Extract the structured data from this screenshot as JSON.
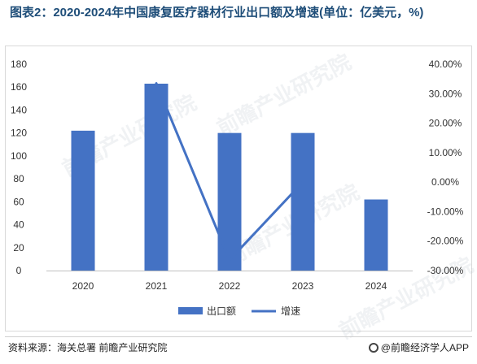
{
  "title": "图表2：2020-2024年中国康复医疗器材行业出口额及增速(单位：亿美元，%)",
  "source": "资料来源：海关总署 前瞻产业研究院",
  "brand": "@前瞻经济学人APP",
  "watermark": "前瞻产业研究院",
  "colors": {
    "bar": "#4472c4",
    "line": "#4472c4",
    "title": "#1f4e79"
  },
  "chart_data": {
    "type": "bar",
    "categories": [
      "2020",
      "2021",
      "2022",
      "2023",
      "2024"
    ],
    "series": [
      {
        "name": "出口额",
        "type": "bar",
        "axis": "left",
        "values": [
          122,
          163,
          120,
          120,
          62
        ]
      },
      {
        "name": "增速",
        "type": "line",
        "axis": "right",
        "values": [
          null,
          33.5,
          -26.4,
          0,
          null
        ]
      }
    ],
    "yleft": {
      "min": 0,
      "max": 180,
      "step": 20,
      "ticks": [
        "0",
        "20",
        "40",
        "60",
        "80",
        "100",
        "120",
        "140",
        "160",
        "180"
      ]
    },
    "yright": {
      "min": -30,
      "max": 40,
      "step": 10,
      "ticks": [
        "-30.00%",
        "-20.00%",
        "-10.00%",
        "0.00%",
        "10.00%",
        "20.00%",
        "30.00%",
        "40.00%"
      ]
    },
    "legend": {
      "position": "bottom",
      "items": [
        "出口额",
        "增速"
      ]
    },
    "grid": false
  }
}
